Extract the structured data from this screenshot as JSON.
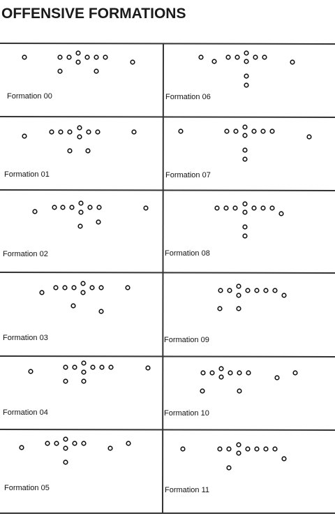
{
  "header": {
    "title": "OFFENSIVE FORMATIONS"
  },
  "formations": [
    {
      "label": "Formation 00"
    },
    {
      "label": "Formation 01"
    },
    {
      "label": "Formation 02"
    },
    {
      "label": "Formation 03"
    },
    {
      "label": "Formation 04"
    },
    {
      "label": "Formation 05"
    },
    {
      "label": "Formation 06"
    },
    {
      "label": "Formation 07"
    },
    {
      "label": "Formation 08"
    },
    {
      "label": "Formation 09"
    },
    {
      "label": "Formation 10"
    },
    {
      "label": "Formation 11"
    }
  ]
}
